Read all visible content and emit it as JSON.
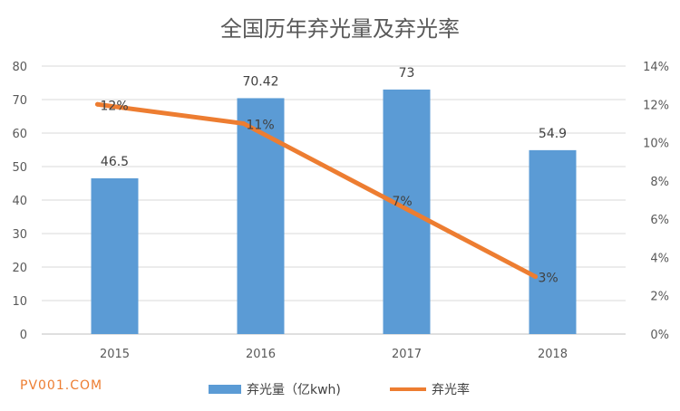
{
  "chart_data": {
    "type": "bar",
    "title": "全国历年弃光量及弃光率",
    "categories": [
      "2015",
      "2016",
      "2017",
      "2018"
    ],
    "series": [
      {
        "name": "弃光量（亿kwh)",
        "type": "bar",
        "axis": "left",
        "values": [
          46.5,
          70.42,
          73,
          54.9
        ],
        "labels": [
          "46.5",
          "70.42",
          "73",
          "54.9"
        ],
        "color": "#5B9BD5"
      },
      {
        "name": "弃光率",
        "type": "line",
        "axis": "right",
        "values": [
          12,
          11,
          7,
          3
        ],
        "labels": [
          "12%",
          "11%",
          "7%",
          "3%"
        ],
        "color": "#ED7D31"
      }
    ],
    "ylim": [
      0,
      80
    ],
    "y_ticks": [
      "0",
      "10",
      "20",
      "30",
      "40",
      "50",
      "60",
      "70",
      "80"
    ],
    "y2lim": [
      0,
      14
    ],
    "y2_ticks": [
      "0%",
      "2%",
      "4%",
      "6%",
      "8%",
      "10%",
      "12%",
      "14%"
    ],
    "grid": true,
    "legend_position": "bottom"
  },
  "watermark": {
    "text": "PV001.COM",
    "color": "#ED7D31"
  }
}
